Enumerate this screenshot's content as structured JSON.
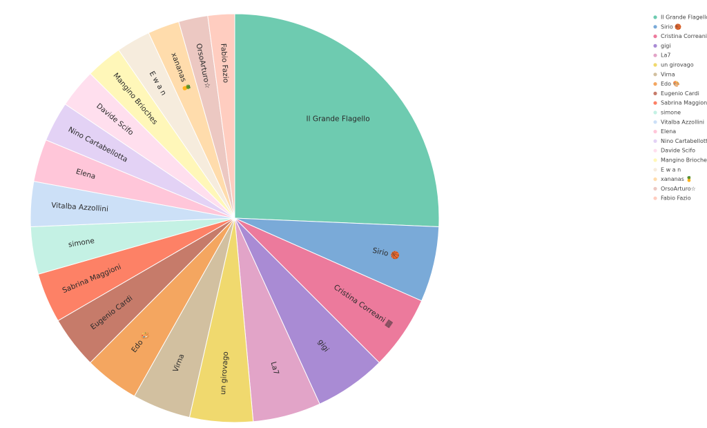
{
  "chart_data": {
    "type": "pie",
    "title": "",
    "legend_position": "top-right",
    "start_angle_deg": 0,
    "direction": "clockwise",
    "labels": [
      "Il Grande Flagello",
      "Sirio 🏀",
      "Cristina Correani 🀫",
      "gigi",
      "La7",
      "un girovago",
      "Virna",
      "Edo 🎨",
      "Eugenio Cardi",
      "Sabrina Maggioni",
      "simone",
      "Vitalba Azzollini",
      "Elena",
      "Nino Cartabellotta",
      "Davide Scifo",
      "Mangino Brioches",
      "E w a n",
      "xananas 🍍",
      "OrsoArturo☆",
      "Fabio Fazio"
    ],
    "values": [
      26.7,
      6.2,
      6.1,
      5.9,
      5.6,
      5.2,
      4.8,
      4.5,
      4.3,
      4.1,
      3.9,
      3.7,
      3.5,
      3.3,
      3.2,
      3.0,
      2.8,
      2.6,
      2.4,
      2.2
    ],
    "colors": [
      "#6ecbb0",
      "#7aaad8",
      "#ec7a9c",
      "#a98bd4",
      "#e2a4c8",
      "#f0d96e",
      "#d2c0a0",
      "#f4a660",
      "#c67b6a",
      "#fd8166",
      "#c4f1e4",
      "#cce0f7",
      "#ffc6d9",
      "#e3d2f5",
      "#ffdfee",
      "#fff7b9",
      "#f6ecdd",
      "#ffdcac",
      "#ecc8c2",
      "#ffcdc0"
    ]
  }
}
